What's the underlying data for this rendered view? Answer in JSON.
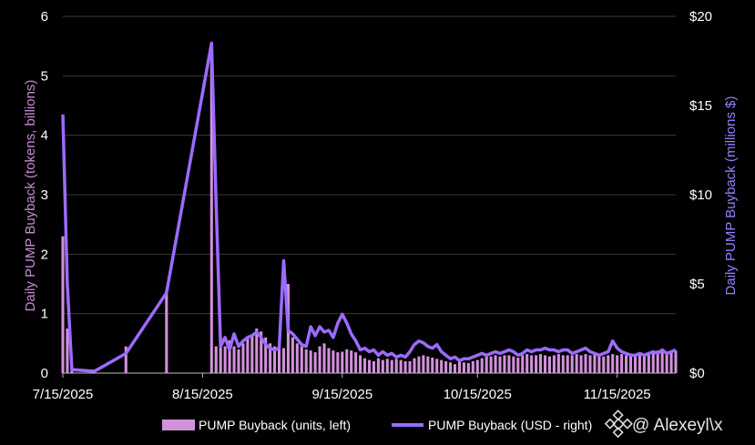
{
  "chart_data": {
    "type": "bar+line",
    "title": "",
    "ylabel_left": "Daily PUMP Buyback (tokens, billions)",
    "ylabel_right": "Daily PUMP Buyback (millions $)",
    "ylim_left": [
      0,
      6
    ],
    "ylim_right": [
      0,
      20
    ],
    "yticks_left": [
      "0",
      "1",
      "2",
      "3",
      "4",
      "5",
      "6"
    ],
    "yticks_right": [
      "$0",
      "$5",
      "$10",
      "$15",
      "$20"
    ],
    "x_start": "2025-07-15",
    "x_end": "2025-11-28",
    "xticks": [
      "7/15/2025",
      "8/15/2025",
      "9/15/2025",
      "10/15/2025",
      "11/15/2025"
    ],
    "grid": true,
    "legend_placement": "bottom",
    "colors": {
      "bars": "#d291dc",
      "line": "#9b6bff",
      "grid": "#3a3a3a"
    },
    "series": [
      {
        "name": "PUMP Buyback (units, left)",
        "type": "bar",
        "axis": "left",
        "points": [
          [
            "2025-07-15",
            2.3
          ],
          [
            "2025-07-16",
            0.75
          ],
          [
            "2025-07-17",
            0.05
          ],
          [
            "2025-07-29",
            0.45
          ],
          [
            "2025-08-07",
            1.4
          ],
          [
            "2025-08-17",
            5.5
          ],
          [
            "2025-08-18",
            0.45
          ],
          [
            "2025-08-19",
            0.6
          ],
          [
            "2025-08-20",
            0.45
          ],
          [
            "2025-08-21",
            0.55
          ],
          [
            "2025-08-22",
            0.45
          ],
          [
            "2025-08-23",
            0.4
          ],
          [
            "2025-08-24",
            0.5
          ],
          [
            "2025-08-25",
            0.6
          ],
          [
            "2025-08-26",
            0.65
          ],
          [
            "2025-08-27",
            0.75
          ],
          [
            "2025-08-28",
            0.7
          ],
          [
            "2025-08-29",
            0.6
          ],
          [
            "2025-08-30",
            0.5
          ],
          [
            "2025-08-31",
            0.45
          ],
          [
            "2025-09-01",
            0.4
          ],
          [
            "2025-09-02",
            0.42
          ],
          [
            "2025-09-03",
            1.5
          ],
          [
            "2025-09-04",
            0.6
          ],
          [
            "2025-09-05",
            0.5
          ],
          [
            "2025-09-06",
            0.45
          ],
          [
            "2025-09-07",
            0.4
          ],
          [
            "2025-09-08",
            0.38
          ],
          [
            "2025-09-09",
            0.35
          ],
          [
            "2025-09-10",
            0.45
          ],
          [
            "2025-09-11",
            0.5
          ],
          [
            "2025-09-12",
            0.42
          ],
          [
            "2025-09-13",
            0.38
          ],
          [
            "2025-09-14",
            0.35
          ],
          [
            "2025-09-15",
            0.36
          ],
          [
            "2025-09-16",
            0.4
          ],
          [
            "2025-09-17",
            0.38
          ],
          [
            "2025-09-18",
            0.35
          ],
          [
            "2025-09-19",
            0.3
          ],
          [
            "2025-09-20",
            0.25
          ],
          [
            "2025-09-21",
            0.22
          ],
          [
            "2025-09-22",
            0.2
          ],
          [
            "2025-09-23",
            0.25
          ],
          [
            "2025-09-24",
            0.22
          ],
          [
            "2025-09-25",
            0.24
          ],
          [
            "2025-09-26",
            0.22
          ],
          [
            "2025-09-27",
            0.24
          ],
          [
            "2025-09-28",
            0.22
          ],
          [
            "2025-09-29",
            0.2
          ],
          [
            "2025-09-30",
            0.2
          ],
          [
            "2025-10-01",
            0.25
          ],
          [
            "2025-10-02",
            0.28
          ],
          [
            "2025-10-03",
            0.3
          ],
          [
            "2025-10-04",
            0.28
          ],
          [
            "2025-10-05",
            0.26
          ],
          [
            "2025-10-06",
            0.24
          ],
          [
            "2025-10-07",
            0.22
          ],
          [
            "2025-10-08",
            0.2
          ],
          [
            "2025-10-09",
            0.18
          ],
          [
            "2025-10-10",
            0.15
          ],
          [
            "2025-10-11",
            0.2
          ],
          [
            "2025-10-12",
            0.18
          ],
          [
            "2025-10-13",
            0.17
          ],
          [
            "2025-10-14",
            0.2
          ],
          [
            "2025-10-15",
            0.22
          ],
          [
            "2025-10-16",
            0.25
          ],
          [
            "2025-10-17",
            0.28
          ],
          [
            "2025-10-18",
            0.28
          ],
          [
            "2025-10-19",
            0.3
          ],
          [
            "2025-10-20",
            0.28
          ],
          [
            "2025-10-21",
            0.3
          ],
          [
            "2025-10-22",
            0.3
          ],
          [
            "2025-10-23",
            0.28
          ],
          [
            "2025-10-24",
            0.26
          ],
          [
            "2025-10-25",
            0.3
          ],
          [
            "2025-10-26",
            0.32
          ],
          [
            "2025-10-27",
            0.3
          ],
          [
            "2025-10-28",
            0.3
          ],
          [
            "2025-10-29",
            0.32
          ],
          [
            "2025-10-30",
            0.3
          ],
          [
            "2025-10-31",
            0.28
          ],
          [
            "2025-11-01",
            0.3
          ],
          [
            "2025-11-02",
            0.32
          ],
          [
            "2025-11-03",
            0.3
          ],
          [
            "2025-11-04",
            0.3
          ],
          [
            "2025-11-05",
            0.3
          ],
          [
            "2025-11-06",
            0.32
          ],
          [
            "2025-11-07",
            0.3
          ],
          [
            "2025-11-08",
            0.32
          ],
          [
            "2025-11-09",
            0.3
          ],
          [
            "2025-11-10",
            0.32
          ],
          [
            "2025-11-11",
            0.3
          ],
          [
            "2025-11-12",
            0.28
          ],
          [
            "2025-11-13",
            0.3
          ],
          [
            "2025-11-14",
            0.32
          ],
          [
            "2025-11-15",
            0.3
          ],
          [
            "2025-11-16",
            0.32
          ],
          [
            "2025-11-17",
            0.3
          ],
          [
            "2025-11-18",
            0.33
          ],
          [
            "2025-11-19",
            0.32
          ],
          [
            "2025-11-20",
            0.3
          ],
          [
            "2025-11-21",
            0.28
          ],
          [
            "2025-11-22",
            0.32
          ],
          [
            "2025-11-23",
            0.35
          ],
          [
            "2025-11-24",
            0.38
          ],
          [
            "2025-11-25",
            0.35
          ],
          [
            "2025-11-26",
            0.32
          ],
          [
            "2025-11-27",
            0.35
          ],
          [
            "2025-11-28",
            0.38
          ]
        ]
      },
      {
        "name": "PUMP Buyback (USD - right)",
        "type": "line",
        "axis": "right",
        "points": [
          [
            "2025-07-15",
            14.5
          ],
          [
            "2025-07-16",
            5.0
          ],
          [
            "2025-07-17",
            0.2
          ],
          [
            "2025-07-22",
            0.1
          ],
          [
            "2025-07-29",
            1.1
          ],
          [
            "2025-08-07",
            4.5
          ],
          [
            "2025-08-17",
            18.5
          ],
          [
            "2025-08-18",
            9.5
          ],
          [
            "2025-08-19",
            1.5
          ],
          [
            "2025-08-20",
            2.0
          ],
          [
            "2025-08-21",
            1.3
          ],
          [
            "2025-08-22",
            2.2
          ],
          [
            "2025-08-23",
            1.5
          ],
          [
            "2025-08-24",
            1.8
          ],
          [
            "2025-08-25",
            2.0
          ],
          [
            "2025-08-26",
            2.1
          ],
          [
            "2025-08-27",
            2.3
          ],
          [
            "2025-08-28",
            2.0
          ],
          [
            "2025-08-29",
            1.6
          ],
          [
            "2025-08-30",
            1.4
          ],
          [
            "2025-08-31",
            1.3
          ],
          [
            "2025-09-01",
            1.4
          ],
          [
            "2025-09-02",
            6.3
          ],
          [
            "2025-09-03",
            2.4
          ],
          [
            "2025-09-04",
            2.2
          ],
          [
            "2025-09-05",
            1.9
          ],
          [
            "2025-09-06",
            1.6
          ],
          [
            "2025-09-07",
            1.5
          ],
          [
            "2025-09-08",
            2.6
          ],
          [
            "2025-09-09",
            2.1
          ],
          [
            "2025-09-10",
            2.6
          ],
          [
            "2025-09-11",
            2.3
          ],
          [
            "2025-09-12",
            2.4
          ],
          [
            "2025-09-13",
            2.0
          ],
          [
            "2025-09-14",
            2.8
          ],
          [
            "2025-09-15",
            3.3
          ],
          [
            "2025-09-16",
            2.8
          ],
          [
            "2025-09-17",
            2.2
          ],
          [
            "2025-09-18",
            1.8
          ],
          [
            "2025-09-19",
            1.3
          ],
          [
            "2025-09-20",
            1.4
          ],
          [
            "2025-09-21",
            1.2
          ],
          [
            "2025-09-22",
            1.3
          ],
          [
            "2025-09-23",
            1.0
          ],
          [
            "2025-09-24",
            1.2
          ],
          [
            "2025-09-25",
            1.0
          ],
          [
            "2025-09-26",
            1.1
          ],
          [
            "2025-09-27",
            0.9
          ],
          [
            "2025-09-28",
            1.0
          ],
          [
            "2025-09-29",
            0.9
          ],
          [
            "2025-09-30",
            1.2
          ],
          [
            "2025-10-01",
            1.6
          ],
          [
            "2025-10-02",
            1.8
          ],
          [
            "2025-10-03",
            1.7
          ],
          [
            "2025-10-04",
            1.5
          ],
          [
            "2025-10-05",
            1.4
          ],
          [
            "2025-10-06",
            1.6
          ],
          [
            "2025-10-07",
            1.2
          ],
          [
            "2025-10-08",
            1.0
          ],
          [
            "2025-10-09",
            0.8
          ],
          [
            "2025-10-10",
            0.9
          ],
          [
            "2025-10-11",
            0.7
          ],
          [
            "2025-10-12",
            0.8
          ],
          [
            "2025-10-13",
            0.8
          ],
          [
            "2025-10-14",
            0.9
          ],
          [
            "2025-10-15",
            1.0
          ],
          [
            "2025-10-16",
            1.1
          ],
          [
            "2025-10-17",
            1.0
          ],
          [
            "2025-10-18",
            1.1
          ],
          [
            "2025-10-19",
            1.2
          ],
          [
            "2025-10-20",
            1.1
          ],
          [
            "2025-10-21",
            1.2
          ],
          [
            "2025-10-22",
            1.3
          ],
          [
            "2025-10-23",
            1.2
          ],
          [
            "2025-10-24",
            1.0
          ],
          [
            "2025-10-25",
            1.1
          ],
          [
            "2025-10-26",
            1.3
          ],
          [
            "2025-10-27",
            1.2
          ],
          [
            "2025-10-28",
            1.3
          ],
          [
            "2025-10-29",
            1.3
          ],
          [
            "2025-10-30",
            1.4
          ],
          [
            "2025-10-31",
            1.3
          ],
          [
            "2025-11-01",
            1.3
          ],
          [
            "2025-11-02",
            1.2
          ],
          [
            "2025-11-03",
            1.3
          ],
          [
            "2025-11-04",
            1.3
          ],
          [
            "2025-11-05",
            1.1
          ],
          [
            "2025-11-06",
            1.2
          ],
          [
            "2025-11-07",
            1.3
          ],
          [
            "2025-11-08",
            1.4
          ],
          [
            "2025-11-09",
            1.2
          ],
          [
            "2025-11-10",
            1.1
          ],
          [
            "2025-11-11",
            1.0
          ],
          [
            "2025-11-12",
            1.1
          ],
          [
            "2025-11-13",
            1.2
          ],
          [
            "2025-11-14",
            1.8
          ],
          [
            "2025-11-15",
            1.4
          ],
          [
            "2025-11-16",
            1.2
          ],
          [
            "2025-11-17",
            1.1
          ],
          [
            "2025-11-18",
            1.0
          ],
          [
            "2025-11-19",
            1.0
          ],
          [
            "2025-11-20",
            1.1
          ],
          [
            "2025-11-21",
            1.0
          ],
          [
            "2025-11-22",
            1.1
          ],
          [
            "2025-11-23",
            1.2
          ],
          [
            "2025-11-24",
            1.1
          ],
          [
            "2025-11-25",
            1.3
          ],
          [
            "2025-11-26",
            1.1
          ],
          [
            "2025-11-27",
            1.2
          ],
          [
            "2025-11-28",
            1.3
          ]
        ]
      }
    ]
  },
  "legend": {
    "bars_label": "PUMP Buyback (units, left)",
    "line_label": "PUMP Buyback (USD - right)"
  },
  "watermark": {
    "text": "@ Alexeyl\\x",
    "icon": "binance-square-icon"
  }
}
